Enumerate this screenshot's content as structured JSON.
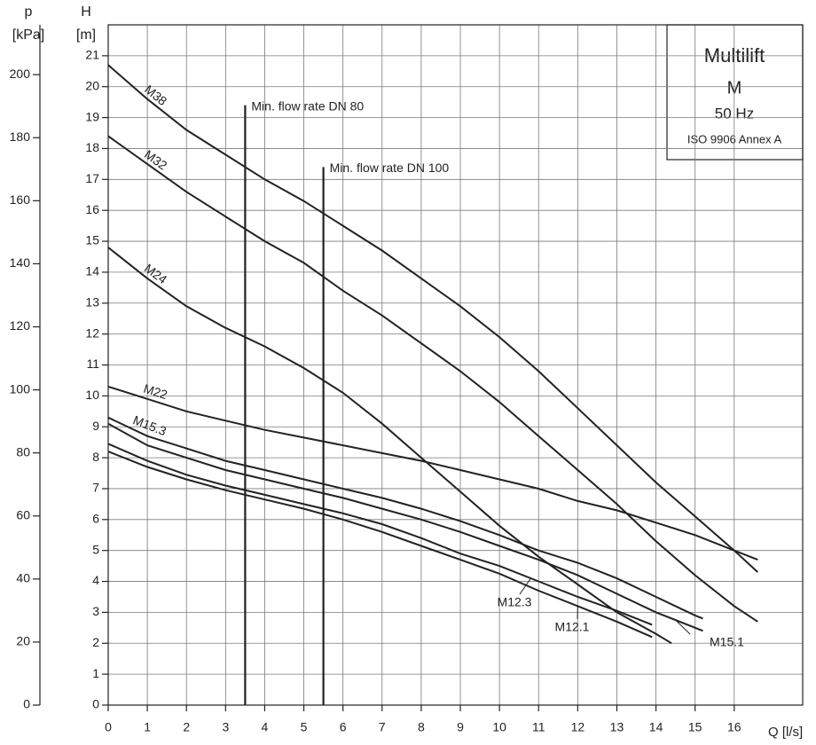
{
  "chart_data": {
    "type": "line",
    "title": "Multilift",
    "subtitle": "M",
    "frequency": "50 Hz",
    "standard": "ISO 9906 Annex A",
    "x_label": "Q [l/s]",
    "y_label": "H",
    "y_unit": "[m]",
    "y2_label": "p",
    "y2_unit": "[kPa]",
    "xlim": [
      0,
      17.75
    ],
    "xticks": [
      0,
      1,
      2,
      3,
      4,
      5,
      6,
      7,
      8,
      9,
      10,
      11,
      12,
      13,
      14,
      15,
      16
    ],
    "ylim": [
      0,
      22
    ],
    "yticks": [
      0,
      1,
      2,
      3,
      4,
      5,
      6,
      7,
      8,
      9,
      10,
      11,
      12,
      13,
      14,
      15,
      16,
      17,
      18,
      19,
      20,
      21
    ],
    "y2lim": [
      0,
      215.8
    ],
    "y2ticks": [
      0,
      20,
      40,
      60,
      80,
      100,
      120,
      140,
      160,
      180,
      200
    ],
    "grid": true,
    "annotations": [
      {
        "text": "Min. flow rate DN 80",
        "x": 3.5,
        "y": 19.4
      },
      {
        "text": "Min. flow rate DN 100",
        "x": 5.5,
        "y": 17.4
      }
    ],
    "series": [
      {
        "name": "M38",
        "color": "#222222",
        "x": [
          0,
          1,
          2,
          3,
          4,
          5,
          6,
          7,
          8,
          9,
          10,
          11,
          12,
          13,
          14,
          15,
          16,
          16.6
        ],
        "values": [
          20.7,
          19.6,
          18.6,
          17.8,
          17.0,
          16.3,
          15.5,
          14.7,
          13.8,
          12.9,
          11.9,
          10.8,
          9.6,
          8.4,
          7.2,
          6.1,
          5.0,
          4.3
        ]
      },
      {
        "name": "M32",
        "color": "#222222",
        "x": [
          0,
          1,
          2,
          3,
          4,
          5,
          6,
          7,
          8,
          9,
          10,
          11,
          12,
          13,
          14,
          15,
          16,
          16.6
        ],
        "values": [
          18.4,
          17.5,
          16.6,
          15.8,
          15.0,
          14.3,
          13.4,
          12.6,
          11.7,
          10.8,
          9.8,
          8.7,
          7.6,
          6.5,
          5.3,
          4.2,
          3.2,
          2.7
        ]
      },
      {
        "name": "M24",
        "color": "#222222",
        "x": [
          0,
          1,
          2,
          3,
          4,
          5,
          6,
          7,
          8,
          9,
          10,
          11,
          12,
          13,
          14,
          14.4
        ],
        "values": [
          14.8,
          13.8,
          12.9,
          12.2,
          11.6,
          10.9,
          10.1,
          9.1,
          8.0,
          6.9,
          5.8,
          4.8,
          3.9,
          3.0,
          2.3,
          2.0
        ]
      },
      {
        "name": "M22",
        "color": "#222222",
        "x": [
          0,
          1,
          2,
          3,
          4,
          5,
          6,
          7,
          8,
          9,
          10,
          11,
          12,
          13,
          14,
          15,
          16,
          16.6
        ],
        "values": [
          10.3,
          9.9,
          9.5,
          9.2,
          8.9,
          8.65,
          8.4,
          8.15,
          7.9,
          7.6,
          7.3,
          7.0,
          6.6,
          6.3,
          5.9,
          5.5,
          5.0,
          4.7
        ]
      },
      {
        "name": "M15.3",
        "color": "#222222",
        "x": [
          0,
          1,
          2,
          3,
          4,
          5,
          6,
          7,
          8,
          9,
          10,
          11,
          12,
          13,
          14,
          15,
          15.2
        ],
        "values": [
          9.3,
          8.7,
          8.3,
          7.9,
          7.6,
          7.3,
          7.0,
          6.7,
          6.35,
          5.95,
          5.5,
          5.0,
          4.6,
          4.1,
          3.5,
          2.9,
          2.8
        ]
      },
      {
        "name": "M15.1",
        "color": "#222222",
        "x": [
          0,
          1,
          2,
          3,
          4,
          5,
          6,
          7,
          8,
          9,
          10,
          11,
          12,
          13,
          14,
          15,
          15.2
        ],
        "values": [
          9.1,
          8.4,
          8.0,
          7.6,
          7.3,
          7.0,
          6.7,
          6.35,
          6.0,
          5.6,
          5.15,
          4.7,
          4.2,
          3.6,
          3.0,
          2.5,
          2.4
        ]
      },
      {
        "name": "M12.3",
        "color": "#222222",
        "x": [
          0,
          1,
          2,
          3,
          4,
          5,
          6,
          7,
          8,
          9,
          10,
          11,
          12,
          13,
          13.9
        ],
        "values": [
          8.45,
          7.9,
          7.45,
          7.1,
          6.8,
          6.5,
          6.2,
          5.85,
          5.4,
          4.9,
          4.5,
          4.0,
          3.5,
          3.05,
          2.6
        ]
      },
      {
        "name": "M12.1",
        "color": "#222222",
        "x": [
          0,
          1,
          2,
          3,
          4,
          5,
          6,
          7,
          8,
          9,
          10,
          11,
          12,
          13,
          13.9
        ],
        "values": [
          8.2,
          7.7,
          7.3,
          6.95,
          6.65,
          6.35,
          6.0,
          5.6,
          5.15,
          4.7,
          4.25,
          3.7,
          3.2,
          2.7,
          2.2
        ]
      }
    ]
  }
}
